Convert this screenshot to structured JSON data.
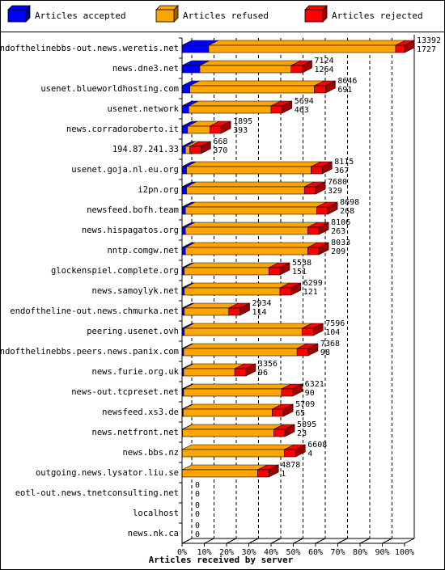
{
  "chart_data": {
    "type": "bar",
    "stacked": "horizontal",
    "xlabel": "Articles received by server",
    "x_ticks": [
      "0%",
      "10%",
      "20%",
      "30%",
      "40%",
      "50%",
      "60%",
      "70%",
      "80%",
      "90%",
      "100%"
    ],
    "legend_placement": "top",
    "series": [
      {
        "name": "Articles accepted",
        "color": "#0000ff"
      },
      {
        "name": "Articles refused",
        "color": "#ffa500"
      },
      {
        "name": "Articles rejected",
        "color": "#ff0000"
      }
    ],
    "rows": [
      {
        "server": "endofthelinebbs-out.news.weretis.net",
        "label_top": "13392",
        "label_bottom": "1727",
        "accepted": 12,
        "refused": 84,
        "rejected": 4
      },
      {
        "server": "news.dne3.net",
        "label_top": "7124",
        "label_bottom": "1264",
        "accepted": 8,
        "refused": 41,
        "rejected": 5
      },
      {
        "server": "usenet.blueworldhosting.com",
        "label_top": "8646",
        "label_bottom": "691",
        "accepted": 3.5,
        "refused": 56,
        "rejected": 5
      },
      {
        "server": "usenet.network",
        "label_top": "5694",
        "label_bottom": "463",
        "accepted": 3,
        "refused": 37,
        "rejected": 5
      },
      {
        "server": "news.corradoroberto.it",
        "label_top": "1895",
        "label_bottom": "393",
        "accepted": 2.5,
        "refused": 10,
        "rejected": 5
      },
      {
        "server": "194.87.241.33",
        "label_top": "668",
        "label_bottom": "370",
        "accepted": 1.5,
        "refused": 2,
        "rejected": 5
      },
      {
        "server": "usenet.goja.nl.eu.org",
        "label_top": "8115",
        "label_bottom": "367",
        "accepted": 2,
        "refused": 56,
        "rejected": 5
      },
      {
        "server": "i2pn.org",
        "label_top": "7680",
        "label_bottom": "329",
        "accepted": 2,
        "refused": 53,
        "rejected": 5
      },
      {
        "server": "newsfeed.bofh.team",
        "label_top": "8698",
        "label_bottom": "268",
        "accepted": 1.5,
        "refused": 59,
        "rejected": 5
      },
      {
        "server": "news.hispagatos.org",
        "label_top": "8106",
        "label_bottom": "263",
        "accepted": 1.5,
        "refused": 55,
        "rejected": 5
      },
      {
        "server": "nntp.comgw.net",
        "label_top": "8033",
        "label_bottom": "209",
        "accepted": 1.5,
        "refused": 55,
        "rejected": 5
      },
      {
        "server": "glockenspiel.complete.org",
        "label_top": "5538",
        "label_bottom": "151",
        "accepted": 1,
        "refused": 38,
        "rejected": 5
      },
      {
        "server": "news.samoylyk.net",
        "label_top": "6299",
        "label_bottom": "121",
        "accepted": 1,
        "refused": 43,
        "rejected": 5
      },
      {
        "server": "endoftheline-out.news.chmurka.net",
        "label_top": "2934",
        "label_bottom": "114",
        "accepted": 1,
        "refused": 20,
        "rejected": 5
      },
      {
        "server": "peering.usenet.ovh",
        "label_top": "7596",
        "label_bottom": "104",
        "accepted": 1,
        "refused": 53,
        "rejected": 5
      },
      {
        "server": "endofthelinebbs.peers.news.panix.com",
        "label_top": "7368",
        "label_bottom": "98",
        "accepted": 0.7,
        "refused": 51,
        "rejected": 5
      },
      {
        "server": "news.furie.org.uk",
        "label_top": "3356",
        "label_bottom": "96",
        "accepted": 0.7,
        "refused": 23,
        "rejected": 5
      },
      {
        "server": "news-out.tcpreset.net",
        "label_top": "6321",
        "label_bottom": "90",
        "accepted": 0.7,
        "refused": 44,
        "rejected": 5
      },
      {
        "server": "newsfeed.xs3.de",
        "label_top": "5709",
        "label_bottom": "65",
        "accepted": 0.5,
        "refused": 40,
        "rejected": 5
      },
      {
        "server": "news.netfront.net",
        "label_top": "5895",
        "label_bottom": "23",
        "accepted": 0.2,
        "refused": 41,
        "rejected": 5
      },
      {
        "server": "news.bbs.nz",
        "label_top": "6608",
        "label_bottom": "4",
        "accepted": 0,
        "refused": 46,
        "rejected": 5
      },
      {
        "server": "outgoing.news.lysator.liu.se",
        "label_top": "4878",
        "label_bottom": "1",
        "accepted": 0,
        "refused": 34,
        "rejected": 5
      },
      {
        "server": "eotl-out.news.tnetconsulting.net",
        "label_top": "0",
        "label_bottom": "0",
        "accepted": 0,
        "refused": 0,
        "rejected": 0
      },
      {
        "server": "localhost",
        "label_top": "0",
        "label_bottom": "0",
        "accepted": 0,
        "refused": 0,
        "rejected": 0
      },
      {
        "server": "news.nk.ca",
        "label_top": "0",
        "label_bottom": "0",
        "accepted": 0,
        "refused": 0,
        "rejected": 0
      }
    ]
  }
}
